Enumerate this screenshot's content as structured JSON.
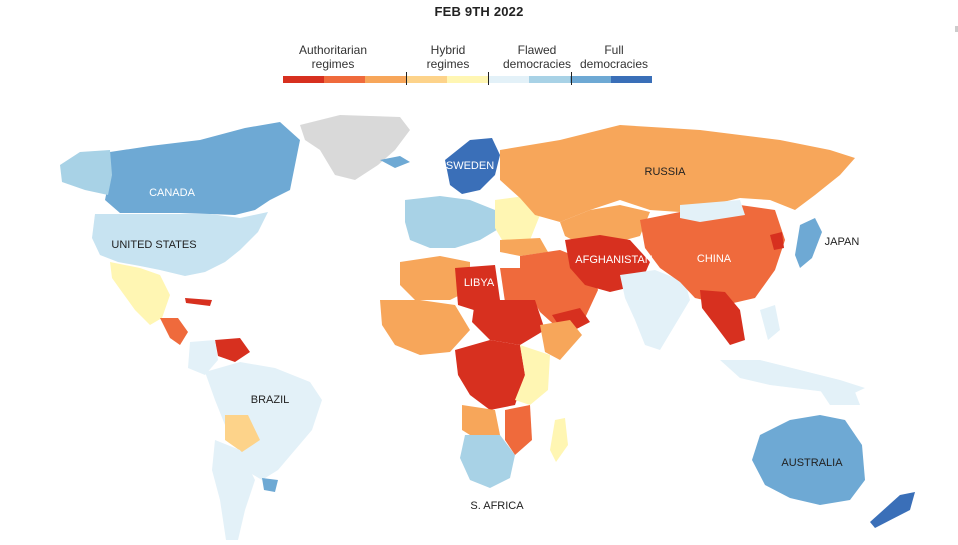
{
  "date": "FEB 9TH 2022",
  "legend": {
    "categories": [
      {
        "label": "Authoritarian\nregimes"
      },
      {
        "label": "Hybrid\nregimes"
      },
      {
        "label": "Flawed\ndemocracies"
      },
      {
        "label": "Full\ndemocracies"
      }
    ],
    "colors": [
      "#d7301f",
      "#ef6a3c",
      "#f7a65a",
      "#fdd38a",
      "#fff6b3",
      "#e3f1f8",
      "#a8d2e6",
      "#6ea9d4",
      "#3a6fb8"
    ]
  },
  "labels": {
    "canada": "CANADA",
    "united_states": "UNITED STATES",
    "brazil": "BRAZIL",
    "russia": "RUSSIA",
    "sweden": "SWEDEN",
    "libya": "LIBYA",
    "afghanistan": "AFGHANISTAN",
    "china": "CHINA",
    "japan": "JAPAN",
    "australia": "AUSTRALIA",
    "south_africa": "S. AFRICA"
  }
}
